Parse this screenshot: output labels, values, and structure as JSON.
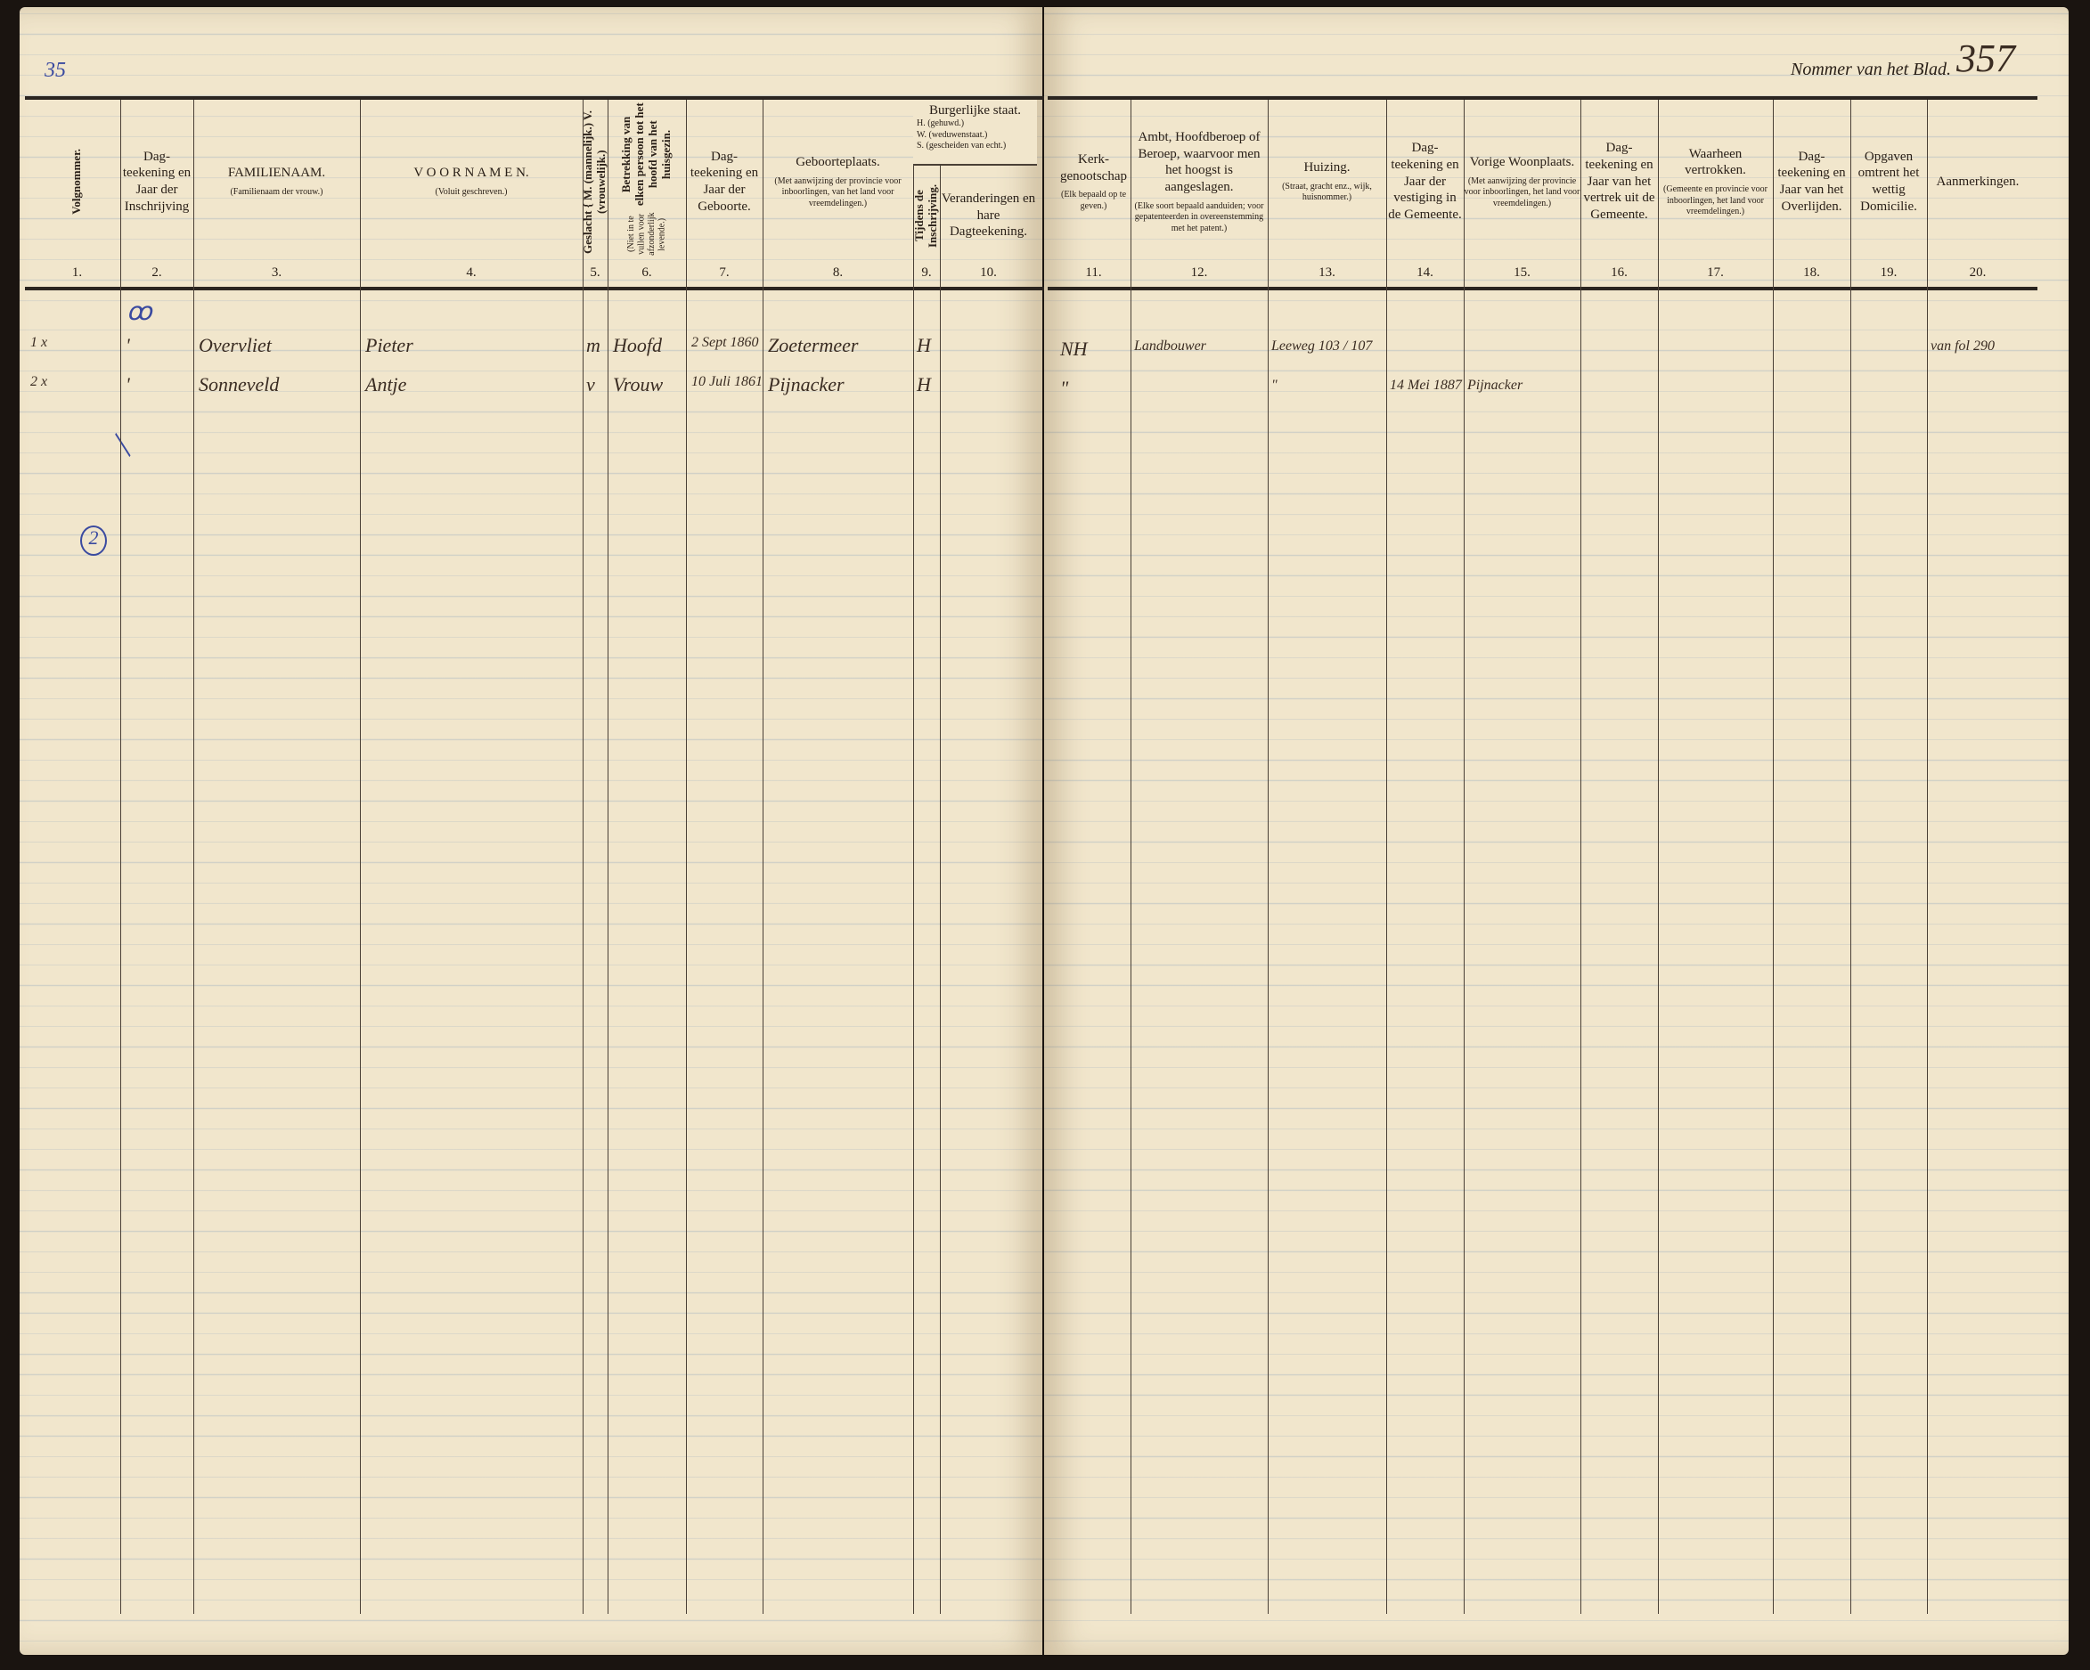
{
  "page_number_label": "Nommer van het Blad.",
  "page_number": "357",
  "previous_ref": "35",
  "margin_note": "2",
  "colors": {
    "paper": "#f1e6cc",
    "ink": "#2a2018",
    "blue_pencil": "#3a4aa0",
    "red_ink": "#b04040"
  },
  "columns_left": [
    {
      "num": "1.",
      "title": "Volgnommer.",
      "sub": ""
    },
    {
      "num": "2.",
      "title": "Dag- teekening en Jaar der Inschrijving",
      "sub": ""
    },
    {
      "num": "3.",
      "title": "FAMILIENAAM.",
      "sub": "(Familienaam der vrouw.)"
    },
    {
      "num": "4.",
      "title": "V O O R N A M E N.",
      "sub": "(Voluit geschreven.)"
    },
    {
      "num": "5.",
      "title": "Geslacht { M. (mannelijk.) V. (vrouwelijk.)",
      "sub": ""
    },
    {
      "num": "6.",
      "title": "Betrekking van elken persoon tot het hoofd van het huisgezin.",
      "sub": "(Niet in te vullen voor afzonderlijk levende.)"
    },
    {
      "num": "7.",
      "title": "Dag- teekening en Jaar der Geboorte.",
      "sub": ""
    },
    {
      "num": "8.",
      "title": "Geboorteplaats.",
      "sub": "(Met aanwijzing der provincie voor inboorlingen, van het land voor vreemdelingen.)"
    },
    {
      "num": "9.",
      "title": "Tijdens de Inschrijving.",
      "sub": ""
    },
    {
      "num": "10.",
      "title": "Veranderingen en hare Dagteekening.",
      "sub": ""
    }
  ],
  "burgerlijke_staat": {
    "title": "Burgerlijke staat.",
    "legend": [
      "H. (gehuwd.)",
      "W. (weduwenstaat.)",
      "S. (gescheiden van echt.)"
    ]
  },
  "columns_right": [
    {
      "num": "11.",
      "title": "Kerk- genootschap",
      "sub": "(Elk bepaald op te geven.)"
    },
    {
      "num": "12.",
      "title": "Ambt, Hoofdberoep of Beroep, waarvoor men het hoogst is aangeslagen.",
      "sub": "(Elke soort bepaald aanduiden; voor gepatenteerden in overeenstemming met het patent.)"
    },
    {
      "num": "13.",
      "title": "Huizing.",
      "sub": "(Straat, gracht enz., wijk, huisnommer.)"
    },
    {
      "num": "14.",
      "title": "Dag- teekening en Jaar der vestiging in de Gemeente.",
      "sub": ""
    },
    {
      "num": "15.",
      "title": "Vorige Woonplaats.",
      "sub": "(Met aanwijzing der provincie voor inboorlingen, het land voor vreemdelingen.)"
    },
    {
      "num": "16.",
      "title": "Dag- teekening en Jaar van het vertrek uit de Gemeente.",
      "sub": ""
    },
    {
      "num": "17.",
      "title": "Waarheen vertrokken.",
      "sub": "(Gemeente en provincie voor inboorlingen, het land voor vreemdelingen.)"
    },
    {
      "num": "18.",
      "title": "Dag- teekening en Jaar van het Overlijden.",
      "sub": ""
    },
    {
      "num": "19.",
      "title": "Opgaven omtrent het wettig Domicilie.",
      "sub": ""
    },
    {
      "num": "20.",
      "title": "Aanmerkingen.",
      "sub": ""
    }
  ],
  "entries": [
    {
      "volgnummer": "1 x",
      "inschrijving": "'",
      "familienaam": "Overvliet",
      "voornamen": "Pieter",
      "geslacht": "m",
      "betrekking": "Hoofd",
      "geboorte": "2 Sept 1860",
      "geboorteplaats": "Zoetermeer",
      "staat": "H",
      "kerk": "NH",
      "beroep": "Landbouwer",
      "huizing": "Leeweg 103 / 107",
      "vestiging": "",
      "vorige_woonplaats": "",
      "aanmerkingen": "van fol 290"
    },
    {
      "volgnummer": "2 x",
      "inschrijving": "'",
      "familienaam": "Sonneveld",
      "voornamen": "Antje",
      "geslacht": "v",
      "betrekking": "Vrouw",
      "geboorte": "10 Juli 1861",
      "geboorteplaats": "Pijnacker",
      "staat": "H",
      "kerk": "\"",
      "beroep": "",
      "huizing": "\"",
      "vestiging": "14 Mei 1887",
      "vorige_woonplaats": "Pijnacker",
      "aanmerkingen": ""
    }
  ]
}
